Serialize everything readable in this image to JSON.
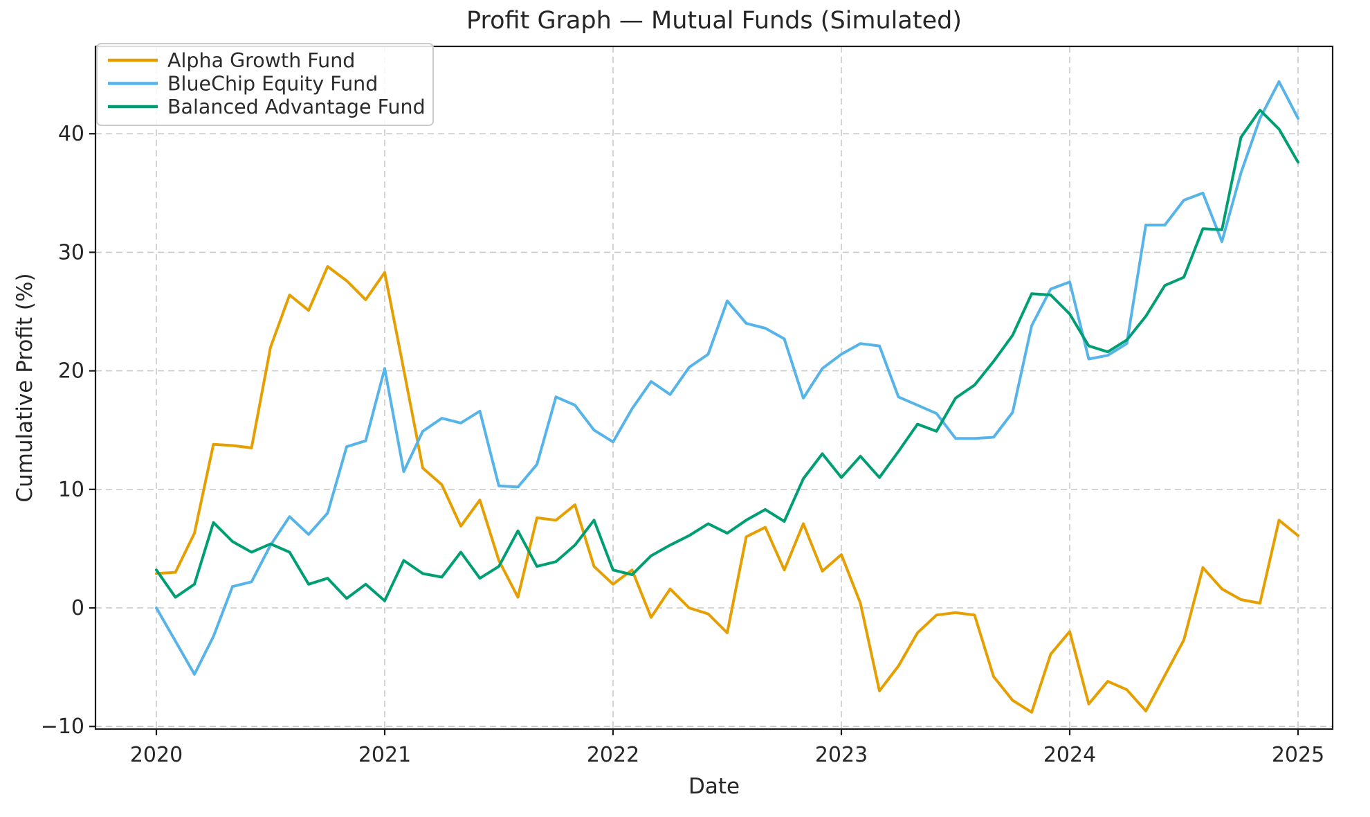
{
  "chart_data": {
    "type": "line",
    "title": "Profit Graph — Mutual Funds (Simulated)",
    "xlabel": "Date",
    "ylabel": "Cumulative Profit (%)",
    "x_tick_labels": [
      "2020",
      "2021",
      "2022",
      "2023",
      "2024",
      "2025"
    ],
    "y_tick_values": [
      -10,
      0,
      10,
      20,
      30,
      40
    ],
    "y_tick_labels": [
      "−10",
      "0",
      "10",
      "20",
      "30",
      "40"
    ],
    "ylim": [
      -10.2,
      47.4
    ],
    "x_start_month": "2020-01",
    "x_end_month": "2025-01",
    "points_per_series": 61,
    "grid": true,
    "grid_style": "dashed",
    "legend_position": "upper left",
    "series": [
      {
        "name": "Alpha Growth Fund",
        "color": "#E69F00",
        "values": [
          2.9,
          3.0,
          6.3,
          13.8,
          13.7,
          13.5,
          22.0,
          26.4,
          25.1,
          28.8,
          27.6,
          26.0,
          28.3,
          20.1,
          11.8,
          10.4,
          6.9,
          9.1,
          4.0,
          0.9,
          7.6,
          7.4,
          8.7,
          3.5,
          2.0,
          3.2,
          -0.8,
          1.6,
          0.0,
          -0.5,
          -2.1,
          6.0,
          6.8,
          3.2,
          7.1,
          3.1,
          4.5,
          0.4,
          -7.0,
          -4.9,
          -2.1,
          -0.6,
          -0.4,
          -0.6,
          -5.8,
          -7.8,
          -8.8,
          -3.9,
          -2.0,
          -8.1,
          -6.2,
          -6.9,
          -8.7,
          -5.7,
          -2.7,
          3.4,
          1.6,
          0.7,
          0.4,
          7.4,
          6.1
        ]
      },
      {
        "name": "BlueChip Equity Fund",
        "color": "#56B4E9",
        "values": [
          0.0,
          -2.8,
          -5.6,
          -2.4,
          1.8,
          2.2,
          5.3,
          7.7,
          6.2,
          8.0,
          13.6,
          14.1,
          20.2,
          11.5,
          14.9,
          16.0,
          15.6,
          16.6,
          10.3,
          10.2,
          12.1,
          17.8,
          17.1,
          15.0,
          14.0,
          16.8,
          19.1,
          18.0,
          20.3,
          21.4,
          25.9,
          24.0,
          23.6,
          22.7,
          17.7,
          20.2,
          21.4,
          22.3,
          22.1,
          17.8,
          17.1,
          16.4,
          14.3,
          14.3,
          14.4,
          16.5,
          23.8,
          26.9,
          27.5,
          21.0,
          21.3,
          22.3,
          32.3,
          32.3,
          34.4,
          35.0,
          30.9,
          36.7,
          41.3,
          44.4,
          41.3
        ]
      },
      {
        "name": "Balanced Advantage Fund",
        "color": "#009E73",
        "values": [
          3.2,
          0.9,
          2.0,
          7.2,
          5.6,
          4.7,
          5.4,
          4.7,
          2.0,
          2.5,
          0.8,
          2.0,
          0.6,
          4.0,
          2.9,
          2.6,
          4.7,
          2.5,
          3.5,
          6.5,
          3.5,
          3.9,
          5.3,
          7.4,
          3.2,
          2.8,
          4.4,
          5.3,
          6.1,
          7.1,
          6.3,
          7.4,
          8.3,
          7.3,
          10.9,
          13.0,
          11.0,
          12.8,
          11.0,
          13.2,
          15.5,
          14.9,
          17.7,
          18.8,
          20.8,
          23.0,
          26.5,
          26.4,
          24.8,
          22.1,
          21.6,
          22.6,
          24.6,
          27.2,
          27.9,
          32.0,
          31.9,
          39.7,
          42.0,
          40.4,
          37.6
        ]
      }
    ]
  },
  "style": {
    "grid_color": "#c9c9c9",
    "spine_color": "#1a1a1a",
    "tick_label_color": "#262626",
    "text_color": "#262626",
    "background": "#ffffff",
    "legend_border_color": "#cccccc",
    "legend_background": "#ffffff"
  }
}
